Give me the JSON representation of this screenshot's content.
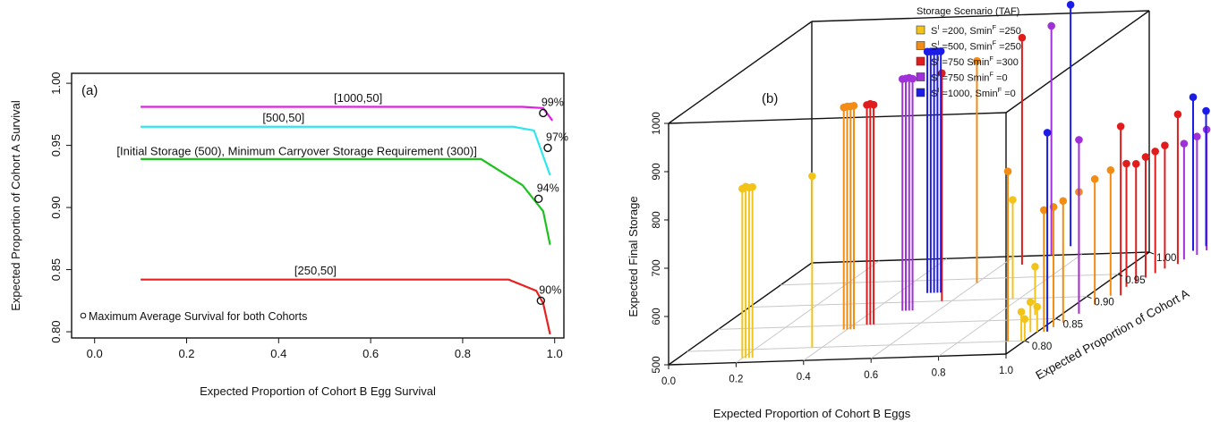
{
  "chart_data": [
    {
      "type": "line",
      "panel_label": "(a)",
      "xlabel": "Expected Proportion of Cohort B Egg Survival",
      "ylabel": "Expected Proportion of Cohort A Survival",
      "xlim": [
        -0.05,
        1.02
      ],
      "ylim": [
        0.795,
        1.008
      ],
      "x_ticks": [
        "0.0",
        "0.2",
        "0.4",
        "0.6",
        "0.8",
        "1.0"
      ],
      "y_ticks": [
        "0.80",
        "0.85",
        "0.90",
        "0.95",
        "1.00"
      ],
      "legend_text": "Maximum Average Survival for both Cohorts",
      "series": [
        {
          "label": "[1000,50]",
          "color": "#e020e0",
          "pct": "99%",
          "x": [
            0.1,
            0.6,
            0.93,
            0.975,
            0.995
          ],
          "y": [
            0.981,
            0.981,
            0.981,
            0.98,
            0.97
          ],
          "max_point": [
            0.975,
            0.976
          ]
        },
        {
          "label": "[500,50]",
          "color": "#2ee6ee",
          "pct": "97%",
          "x": [
            0.1,
            0.5,
            0.91,
            0.955,
            0.99
          ],
          "y": [
            0.965,
            0.965,
            0.965,
            0.962,
            0.926
          ],
          "max_point": [
            0.985,
            0.948
          ]
        },
        {
          "label": "[Initial Storage (500), Minimum Carryover Storage Requirement (300)]",
          "color": "#1ec21e",
          "pct": "94%",
          "x": [
            0.1,
            0.5,
            0.84,
            0.93,
            0.975,
            0.99
          ],
          "y": [
            0.939,
            0.939,
            0.939,
            0.918,
            0.897,
            0.87
          ],
          "max_point": [
            0.965,
            0.907
          ]
        },
        {
          "label": "[250,50]",
          "color": "#e82020",
          "pct": "90%",
          "x": [
            0.1,
            0.5,
            0.9,
            0.96,
            0.975,
            0.99
          ],
          "y": [
            0.842,
            0.842,
            0.842,
            0.833,
            0.823,
            0.798
          ],
          "max_point": [
            0.97,
            0.825
          ]
        }
      ]
    },
    {
      "type": "scatter",
      "panel_label": "(b)",
      "xlabel": "Expected Proportion of Cohort B Eggs",
      "ylabel": "Expected Final Storage",
      "zlabel": "Expected Proportion of Cohort A",
      "x_ticks": [
        "0.0",
        "0.2",
        "0.4",
        "0.6",
        "0.8",
        "1.0"
      ],
      "y_ticks": [
        "500",
        "600",
        "700",
        "800",
        "900",
        "1000"
      ],
      "z_ticks": [
        "0.80",
        "0.85",
        "0.90",
        "0.95",
        "1.00"
      ],
      "legend_title": "Storage Scenario (TAF)",
      "legend": [
        {
          "s": "S",
          "s_sup": "I",
          "mid": " =200, Smin",
          "mid_sup": "F",
          "tail": " =250",
          "color": "#f2c41a"
        },
        {
          "s": "S",
          "s_sup": "I",
          "mid": " =500, Smin",
          "mid_sup": "F",
          "tail": " =250",
          "color": "#f28c14"
        },
        {
          "s": "S",
          "s_sup": "I",
          "mid": " =750 Smin",
          "mid_sup": "F",
          "tail": " =300",
          "color": "#e01c1c"
        },
        {
          "s": "S",
          "s_sup": "I",
          "mid": " =750 Smin",
          "mid_sup": "F",
          "tail": " =0",
          "color": "#a030d8"
        },
        {
          "s": "S",
          "s_sup": "I",
          "mid": " =1000, Smin",
          "mid_sup": "F",
          "tail": " =0",
          "color": "#1c1ce8"
        }
      ],
      "stems": [
        {
          "x": 0.2,
          "z": 0.78,
          "y": 851,
          "g": 0
        },
        {
          "x": 0.21,
          "z": 0.78,
          "y": 855,
          "g": 0
        },
        {
          "x": 0.22,
          "z": 0.78,
          "y": 853,
          "g": 0
        },
        {
          "x": 0.23,
          "z": 0.78,
          "y": 854,
          "g": 0
        },
        {
          "x": 0.37,
          "z": 0.8,
          "y": 855,
          "g": 0
        },
        {
          "x": 0.78,
          "z": 0.9,
          "y": 705,
          "g": 0
        },
        {
          "x": 0.92,
          "z": 0.86,
          "y": 600,
          "g": 0
        },
        {
          "x": 0.98,
          "z": 0.82,
          "y": 562,
          "g": 0
        },
        {
          "x": 0.99,
          "z": 0.8,
          "y": 560,
          "g": 0
        },
        {
          "x": 1.0,
          "z": 0.82,
          "y": 552,
          "g": 0
        },
        {
          "x": 1.0,
          "z": 0.8,
          "y": 545,
          "g": 0
        },
        {
          "x": 0.39,
          "z": 0.84,
          "y": 960,
          "g": 1
        },
        {
          "x": 0.4,
          "z": 0.84,
          "y": 962,
          "g": 1
        },
        {
          "x": 0.41,
          "z": 0.84,
          "y": 962,
          "g": 1
        },
        {
          "x": 0.42,
          "z": 0.84,
          "y": 963,
          "g": 1
        },
        {
          "x": 0.6,
          "z": 0.94,
          "y": 960,
          "g": 1
        },
        {
          "x": 0.95,
          "z": 0.8,
          "y": 852,
          "g": 1
        },
        {
          "x": 1.02,
          "z": 0.82,
          "y": 752,
          "g": 1
        },
        {
          "x": 1.03,
          "z": 0.83,
          "y": 749,
          "g": 1
        },
        {
          "x": 1.04,
          "z": 0.84,
          "y": 752,
          "g": 1
        },
        {
          "x": 1.05,
          "z": 0.86,
          "y": 752,
          "g": 1
        },
        {
          "x": 1.06,
          "z": 0.88,
          "y": 760,
          "g": 1
        },
        {
          "x": 1.07,
          "z": 0.9,
          "y": 760,
          "g": 1
        },
        {
          "x": 0.44,
          "z": 0.85,
          "y": 955,
          "g": 2
        },
        {
          "x": 0.45,
          "z": 0.85,
          "y": 957,
          "g": 2
        },
        {
          "x": 0.46,
          "z": 0.85,
          "y": 955,
          "g": 2
        },
        {
          "x": 0.57,
          "z": 0.9,
          "y": 972,
          "g": 2
        },
        {
          "x": 0.66,
          "z": 0.98,
          "y": 970,
          "g": 2
        },
        {
          "x": 1.08,
          "z": 0.92,
          "y": 755,
          "g": 2
        },
        {
          "x": 1.09,
          "z": 0.93,
          "y": 745,
          "g": 2
        },
        {
          "x": 1.1,
          "z": 0.94,
          "y": 750,
          "g": 2
        },
        {
          "x": 1.11,
          "z": 0.95,
          "y": 752,
          "g": 2
        },
        {
          "x": 1.12,
          "z": 0.96,
          "y": 755,
          "g": 2
        },
        {
          "x": 1.14,
          "z": 0.97,
          "y": 810,
          "g": 2
        },
        {
          "x": 1.1,
          "z": 0.9,
          "y": 850,
          "g": 2
        },
        {
          "x": 0.49,
          "z": 0.88,
          "y": 980,
          "g": 3
        },
        {
          "x": 0.5,
          "z": 0.88,
          "y": 981,
          "g": 3
        },
        {
          "x": 0.51,
          "z": 0.88,
          "y": 982,
          "g": 3
        },
        {
          "x": 0.52,
          "z": 0.88,
          "y": 980,
          "g": 3
        },
        {
          "x": 0.71,
          "z": 1.0,
          "y": 975,
          "g": 3
        },
        {
          "x": 1.14,
          "z": 0.98,
          "y": 740,
          "g": 3
        },
        {
          "x": 1.16,
          "z": 0.99,
          "y": 745,
          "g": 3
        },
        {
          "x": 1.17,
          "z": 1.0,
          "y": 750,
          "g": 3
        },
        {
          "x": 1.05,
          "z": 0.86,
          "y": 860,
          "g": 3
        },
        {
          "x": 0.49,
          "z": 0.92,
          "y": 1000,
          "g": 4
        },
        {
          "x": 0.5,
          "z": 0.92,
          "y": 1000,
          "g": 4
        },
        {
          "x": 0.51,
          "z": 0.92,
          "y": 1000,
          "g": 4
        },
        {
          "x": 0.52,
          "z": 0.92,
          "y": 1000,
          "g": 4
        },
        {
          "x": 0.53,
          "z": 0.92,
          "y": 1000,
          "g": 4
        },
        {
          "x": 0.73,
          "z": 1.02,
          "y": 1000,
          "g": 4
        },
        {
          "x": 1.03,
          "z": 0.82,
          "y": 912,
          "g": 4
        },
        {
          "x": 1.13,
          "z": 1.0,
          "y": 818,
          "g": 4
        },
        {
          "x": 1.15,
          "z": 1.01,
          "y": 780,
          "g": 4
        },
        {
          "x": 1.16,
          "z": 1.02,
          "y": 782,
          "g": 4
        },
        {
          "x": 1.17,
          "z": 1.03,
          "y": 785,
          "g": 4
        },
        {
          "x": 1.18,
          "z": 1.04,
          "y": 782,
          "g": 4
        }
      ]
    }
  ]
}
